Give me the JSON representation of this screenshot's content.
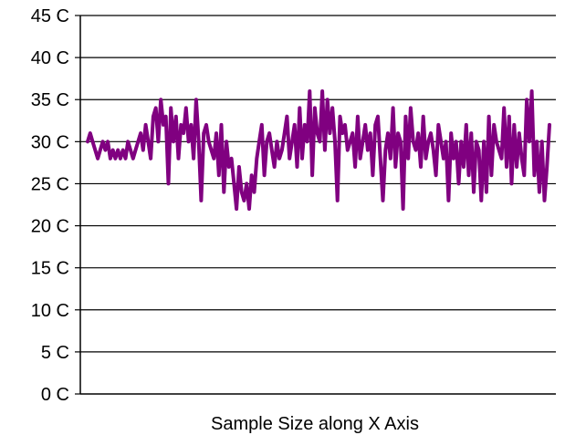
{
  "chart_data": {
    "type": "line",
    "title": "",
    "xlabel": "Sample Size along X Axis",
    "ylabel": "",
    "ylim": [
      0,
      45
    ],
    "ytick_values": [
      0,
      5,
      10,
      15,
      20,
      25,
      30,
      35,
      40,
      45
    ],
    "ytick_labels": [
      "0 C",
      "5 C",
      "10 C",
      "15 C",
      "20 C",
      "25 C",
      "30 C",
      "35 C",
      "40 C",
      "45 C"
    ],
    "grid": "horizontal",
    "legend": "none",
    "series": [
      {
        "color": "#800080",
        "values": [
          30,
          31,
          30,
          29,
          28,
          29,
          30,
          29,
          30,
          28,
          29,
          28,
          29,
          28,
          29,
          28,
          30,
          29,
          28,
          29,
          30,
          31,
          29,
          32,
          30,
          28,
          33,
          34,
          30,
          35,
          32,
          33,
          25,
          34,
          30,
          33,
          28,
          32,
          31,
          34,
          30,
          32,
          28,
          35,
          30,
          23,
          31,
          32,
          30,
          29,
          28,
          31,
          26,
          32,
          24,
          30,
          27,
          28,
          25,
          22,
          27,
          24,
          23,
          25,
          22,
          26,
          24,
          28,
          30,
          32,
          26,
          30,
          31,
          29,
          27,
          30,
          28,
          29,
          31,
          33,
          28,
          30,
          32,
          27,
          34,
          28,
          32,
          30,
          36,
          26,
          34,
          31,
          30,
          36,
          29,
          35,
          31,
          34,
          30,
          23,
          33,
          31,
          32,
          29,
          30,
          31,
          27,
          33,
          28,
          30,
          32,
          29,
          31,
          26,
          32,
          33,
          28,
          23,
          29,
          31,
          28,
          34,
          27,
          31,
          30,
          22,
          33,
          28,
          34,
          30,
          29,
          31,
          27,
          33,
          28,
          30,
          31,
          29,
          26,
          32,
          30,
          28,
          30,
          23,
          31,
          28,
          30,
          25,
          30,
          27,
          32,
          26,
          31,
          24,
          30,
          29,
          23,
          30,
          24,
          33,
          26,
          32,
          30,
          29,
          28,
          34,
          27,
          33,
          25,
          32,
          27,
          31,
          28,
          26,
          35,
          30,
          36,
          26,
          30,
          24,
          30,
          23,
          27,
          32
        ]
      }
    ]
  }
}
